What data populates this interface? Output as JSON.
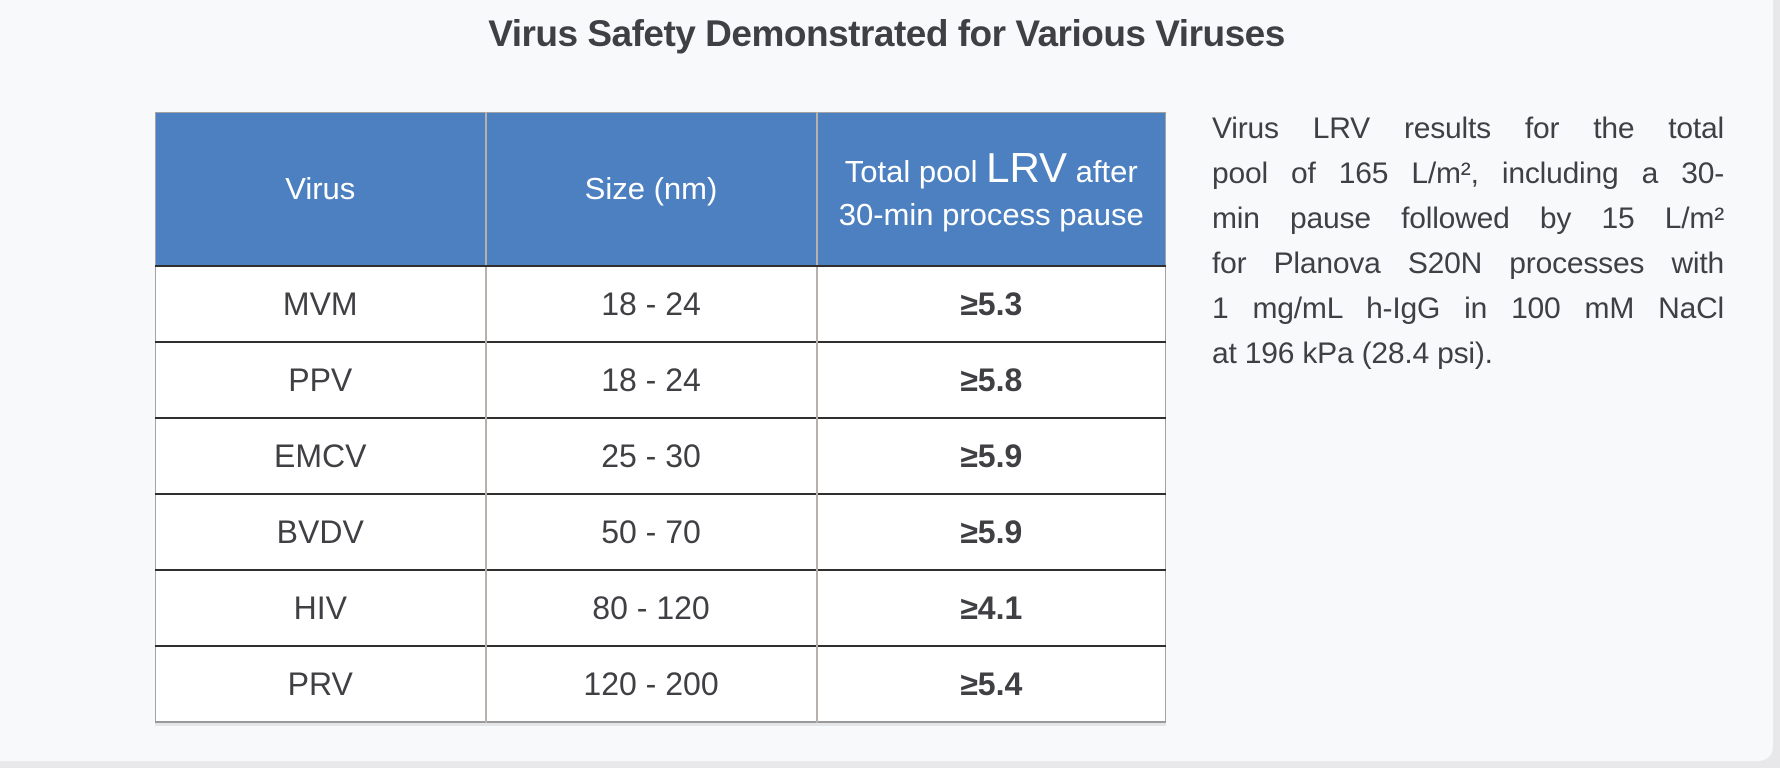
{
  "page": {
    "title": "Virus Safety Demonstrated for Various Viruses"
  },
  "colors": {
    "page_bg": "#f8f9fb",
    "edge_strip": "#e8e8ea",
    "header_bg": "#4d80c0",
    "header_text": "#ffffff",
    "body_text": "#3f3f44",
    "row_divider": "#2f2f2f",
    "col_divider": "#b6b1ad",
    "table_outer_border": "#a3a3a3"
  },
  "table": {
    "col1_header": "Virus",
    "col2_header": "Size (nm)",
    "col3_header": {
      "pre": "Total pool ",
      "lrv": "LRV",
      "post": " after",
      "line2": "30-min process pause"
    },
    "rows": [
      {
        "virus": "MVM",
        "size": "18 - 24",
        "lrv": "≥5.3"
      },
      {
        "virus": "PPV",
        "size": "18 - 24",
        "lrv": "≥5.8"
      },
      {
        "virus": "EMCV",
        "size": "25 - 30",
        "lrv": "≥5.9"
      },
      {
        "virus": "BVDV",
        "size": "50 - 70",
        "lrv": "≥5.9"
      },
      {
        "virus": "HIV",
        "size": "80 - 120",
        "lrv": "≥4.1"
      },
      {
        "virus": "PRV",
        "size": "120 - 200",
        "lrv": "≥5.4"
      }
    ]
  },
  "sidenote": {
    "lines": [
      "Virus LRV results for the total",
      "pool of 165 L/m², including a 30-",
      "min pause followed by 15 L/m²",
      "for Planova S20N processes with",
      "1 mg/mL h-IgG in 100 mM NaCl",
      "at 196 kPa (28.4 psi)."
    ]
  }
}
